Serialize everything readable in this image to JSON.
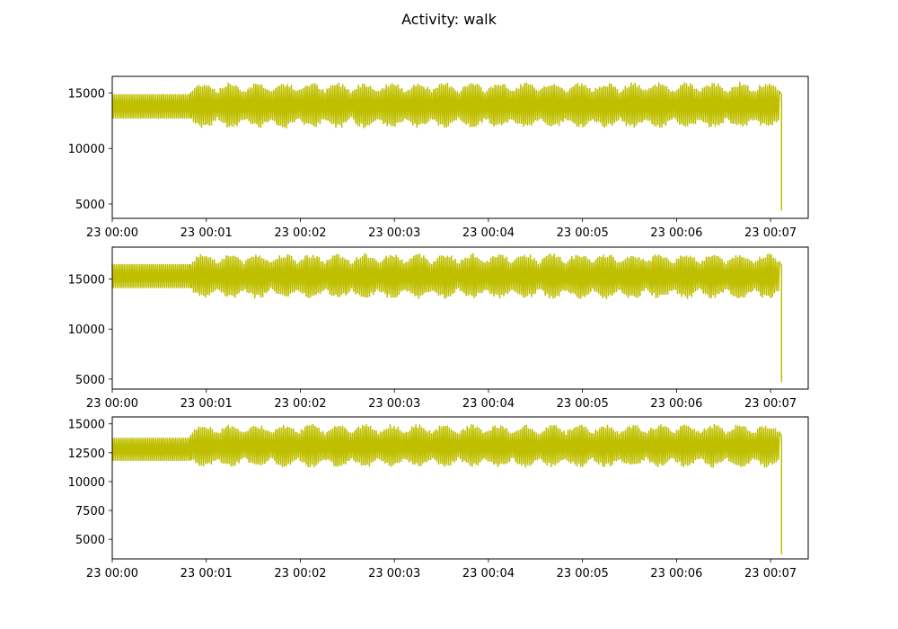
{
  "figure": {
    "title": "Activity: walk"
  },
  "chart_data": [
    {
      "type": "line",
      "title": "",
      "xlabel": "",
      "ylabel": "",
      "color": "#bfbf00",
      "xlim": [
        "23 00:00",
        "23 00:07:24"
      ],
      "ylim": [
        3700,
        16500
      ],
      "x_ticks": [
        "23 00:00",
        "23 00:01",
        "23 00:02",
        "23 00:03",
        "23 00:04",
        "23 00:05",
        "23 00:06",
        "23 00:07"
      ],
      "y_ticks": [
        5000,
        10000,
        15000
      ],
      "y_tick_labels": [
        "5000",
        "10000",
        "15000"
      ],
      "grid": false,
      "series": [
        {
          "x_start": "23 00:00",
          "x_end": "23 00:07:07",
          "segments": [
            {
              "from": "23 00:00",
              "to": "23 00:00:50",
              "min": 12700,
              "max": 14900
            },
            {
              "from": "23 00:00:50",
              "to": "23 00:07:06",
              "min": 11800,
              "max": 16000
            }
          ],
          "final_drop_to": 4400
        }
      ]
    },
    {
      "type": "line",
      "title": "",
      "xlabel": "",
      "ylabel": "",
      "color": "#bfbf00",
      "xlim": [
        "23 00:00",
        "23 00:07:24"
      ],
      "ylim": [
        4000,
        18200
      ],
      "x_ticks": [
        "23 00:00",
        "23 00:01",
        "23 00:02",
        "23 00:03",
        "23 00:04",
        "23 00:05",
        "23 00:06",
        "23 00:07"
      ],
      "y_ticks": [
        5000,
        10000,
        15000
      ],
      "y_tick_labels": [
        "5000",
        "10000",
        "15000"
      ],
      "grid": false,
      "series": [
        {
          "x_start": "23 00:00",
          "x_end": "23 00:07:07",
          "segments": [
            {
              "from": "23 00:00",
              "to": "23 00:00:50",
              "min": 14100,
              "max": 16500
            },
            {
              "from": "23 00:00:50",
              "to": "23 00:07:06",
              "min": 13000,
              "max": 17600
            }
          ],
          "final_drop_to": 4700
        }
      ]
    },
    {
      "type": "line",
      "title": "",
      "xlabel": "",
      "ylabel": "",
      "color": "#bfbf00",
      "xlim": [
        "23 00:00",
        "23 00:07:24"
      ],
      "ylim": [
        3300,
        15600
      ],
      "x_ticks": [
        "23 00:00",
        "23 00:01",
        "23 00:02",
        "23 00:03",
        "23 00:04",
        "23 00:05",
        "23 00:06",
        "23 00:07"
      ],
      "y_ticks": [
        5000,
        7500,
        10000,
        12500,
        15000
      ],
      "y_tick_labels": [
        "5000",
        "7500",
        "10000",
        "12500",
        "15000"
      ],
      "grid": false,
      "series": [
        {
          "x_start": "23 00:00",
          "x_end": "23 00:07:07",
          "segments": [
            {
              "from": "23 00:00",
              "to": "23 00:00:50",
              "min": 11800,
              "max": 13800
            },
            {
              "from": "23 00:00:50",
              "to": "23 00:07:06",
              "min": 11200,
              "max": 15000
            }
          ],
          "final_drop_to": 3700
        }
      ]
    }
  ]
}
